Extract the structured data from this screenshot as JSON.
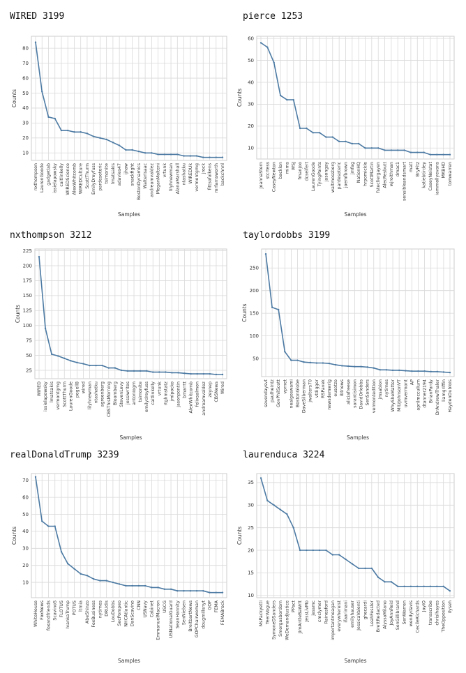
{
  "chart_data": [
    {
      "type": "line",
      "title": "WIRED 3199",
      "xlabel": "Samples",
      "ylabel": "Counts",
      "ylim": [
        5,
        88
      ],
      "yticks": [
        10,
        20,
        30,
        40,
        50,
        60,
        70,
        80
      ],
      "grid": true,
      "line_color": "#4c7aa3",
      "categories": [
        "nxthompson",
        "LaurenGoode",
        "gadgetlab",
        "issielapowsky",
        "caitlinkelly",
        "WIREDScience",
        "AlexWhitcomb",
        "WIREDCulture",
        "ScottThurm",
        "EmilyDreyfuss",
        "pardesoteric",
        "tsimonite",
        "lmatsakis",
        "adavies47",
        "ijhaw",
        "snackfight",
        "BostonDynamics",
        "WalterIsaac",
        "andreamvaldez",
        "MeganMolteni",
        "vrtunk",
        "lilyhnewman",
        "AlanaMarshall",
        "ntashatku",
        "WIREDUk",
        "vermontgmg",
        "jrock",
        "fittsofalkens",
        "mrfarnsworth",
        "backchnnl"
      ],
      "values": [
        84,
        51,
        34,
        33,
        25,
        25,
        24,
        24,
        23,
        21,
        20,
        19,
        17,
        15,
        12,
        12,
        11,
        10,
        10,
        9,
        9,
        9,
        9,
        8,
        8,
        8,
        7,
        7,
        7,
        7
      ]
    },
    {
      "type": "line",
      "title": "pierce 1253",
      "xlabel": "Samples",
      "ylabel": "Counts",
      "ylim": [
        5,
        61
      ],
      "yticks": [
        10,
        20,
        30,
        40,
        50,
        60
      ],
      "grid": true,
      "line_color": "#4c7aa3",
      "categories": [
        "JoannaStern",
        "stcrtess",
        "CaseyNewton",
        "backlon",
        "mims",
        "WSJ",
        "fmanjoo",
        "dcseifert",
        "LaurenGoode",
        "TyingPoints",
        "jasongay",
        "waltmossberg",
        "pardesoteric",
        "joemfbrown",
        "jmfag",
        "NationHQ",
        "hrpomickle",
        "ScottMartin",
        "fstecliergayen",
        "AlecResbutt",
        "wjroithman",
        "dmac1",
        "sensibleandsmart",
        "matt",
        "BryFitz",
        "katiebtirdey",
        "CaseyNeistat",
        "iammollyevans",
        "MKBHD",
        "tomwarren"
      ],
      "values": [
        58,
        56,
        49,
        34,
        32,
        32,
        19,
        19,
        17,
        17,
        15,
        15,
        13,
        13,
        12,
        12,
        10,
        10,
        10,
        9,
        9,
        9,
        9,
        8,
        8,
        8,
        7,
        7,
        7,
        7
      ]
    },
    {
      "type": "line",
      "title": "nxthompson 3212",
      "xlabel": "Samples",
      "ylabel": "Counts",
      "ylim": [
        11,
        228
      ],
      "yticks": [
        25,
        50,
        75,
        100,
        125,
        150,
        175,
        200,
        225
      ],
      "grid": true,
      "line_color": "#4c7aa3",
      "categories": [
        "WIRED",
        "issielapowsky",
        "lmatsakis",
        "vermontgmg",
        "ScottThurm",
        "LaurenGoode",
        "pogell8",
        "wired",
        "lilyhnewman",
        "ntashatku",
        "agreenberg",
        "CBSThisMorning",
        "Bloomberg",
        "StevenLevy",
        "jessiwrites",
        "antoniogm",
        "tsimonite",
        "emilydreyfuss",
        "caitlinkelly",
        "vrtunk",
        "rtghmstatz",
        "jmlpocko",
        "jasonpontin",
        "bmarrtt",
        "AlexWhitcomb",
        "felixsalmon",
        "andreamvaldez",
        "zeynep",
        "CBSNews",
        "Wired"
      ],
      "values": [
        215,
        95,
        52,
        49,
        45,
        41,
        38,
        36,
        33,
        33,
        33,
        29,
        29,
        25,
        24,
        24,
        24,
        24,
        22,
        22,
        22,
        21,
        21,
        20,
        19,
        19,
        19,
        19,
        18,
        18
      ]
    },
    {
      "type": "line",
      "title": "taylordobbs 3199",
      "xlabel": "Samples",
      "ylabel": "Counts",
      "ylim": [
        10,
        292
      ],
      "yticks": [
        50,
        100,
        150,
        200,
        250
      ],
      "grid": true,
      "line_color": "#4c7aa3",
      "categories": [
        "sevendaysvt",
        "paulheintz",
        "GovPhilScott",
        "vprnet",
        "nealgoswami",
        "BostonGlobe",
        "DaveSilberman",
        "jwalters70",
        "vtdigger",
        "RSPavek",
        "newsdemwrig",
        "eusotzo",
        "ibtnews",
        "aliciafreese",
        "sarantisimon",
        "DavidOrlobbs",
        "SenSanders",
        "vermontedition",
        "jmsabion",
        "nytimes",
        "WhySheMatter",
        "MitzJohnsonVT",
        "uvmvermont",
        "AP",
        "aprilmccullum",
        "dtanner2194",
        "BrianPardy",
        "DrAndrewThaler",
        "liamgriffin",
        "HaydenDublois"
      ],
      "values": [
        281,
        163,
        158,
        65,
        46,
        46,
        42,
        41,
        40,
        40,
        39,
        36,
        34,
        33,
        32,
        32,
        31,
        29,
        25,
        25,
        24,
        24,
        23,
        22,
        22,
        22,
        21,
        21,
        20,
        19
      ]
    },
    {
      "type": "line",
      "title": "realDonaldTrump 3239",
      "xlabel": "Samples",
      "ylabel": "Counts",
      "ylim": [
        1,
        74
      ],
      "yticks": [
        10,
        20,
        30,
        40,
        50,
        60,
        70
      ],
      "grid": true,
      "line_color": "#4c7aa3",
      "categories": [
        "WhiteHouse",
        "FoxNews",
        "foxandfriends",
        "ScavinoS",
        "FLOTUS",
        "IvankaTrump",
        "POTUS",
        "ltmia",
        "AbeShinzo",
        "FoxBusiness",
        "nytimes",
        "DRUdis",
        "LouDobbs",
        "SecPompeo",
        "NHCAtlantic",
        "DanScavino",
        "CNN",
        "USNavy",
        "Cabinet",
        "EmmanuelMacron",
        "USCG",
        "USNationalGuard",
        "SeanHannity",
        "SenNielsen",
        "BreitbartNews",
        "GOPChairwoman",
        "dougmillsnyt",
        "GOP",
        "FEMA",
        "FEMABrock"
      ],
      "values": [
        72,
        46,
        43,
        43,
        28,
        21,
        18,
        15,
        14,
        12,
        11,
        11,
        10,
        9,
        8,
        8,
        8,
        8,
        7,
        7,
        6,
        6,
        5,
        5,
        5,
        5,
        5,
        4,
        4,
        4
      ]
    },
    {
      "type": "line",
      "title": "laurenduca 3224",
      "xlabel": "Samples",
      "ylabel": "Counts",
      "ylim": [
        9.5,
        37
      ],
      "yticks": [
        10,
        15,
        20,
        25,
        30,
        35
      ],
      "grid": true,
      "line_color": "#4c7aa3",
      "categories": [
        "MsPackyetti",
        "TeenVogue",
        "SymoneDSanders",
        "Smorgasbordom",
        "WeDemandJustice",
        "PPact",
        "JimAntleBaWrlt",
        "JessLivMo",
        "jessmc",
        "cmclymer",
        "Rainesford",
        "importantmeagan",
        "everywhereist",
        "ifaarimani",
        "emilyhauser",
        "JessicaValenti",
        "ghecardi",
        "LeahFessler",
        "BrettRedacted",
        "AlyssaMilano",
        "JoyAnnReid",
        "SenGillibrand",
        "SenWarren",
        "wendydavis",
        "CecileRichards",
        "JoyIO",
        "transscribe",
        "chrislhayes",
        "TheOpposition",
        "ilyseh"
      ],
      "values": [
        36,
        31,
        30,
        29,
        28,
        25,
        20,
        20,
        20,
        20,
        20,
        19,
        19,
        18,
        17,
        16,
        16,
        16,
        14,
        13,
        13,
        12,
        12,
        12,
        12,
        12,
        12,
        12,
        12,
        11
      ]
    }
  ]
}
